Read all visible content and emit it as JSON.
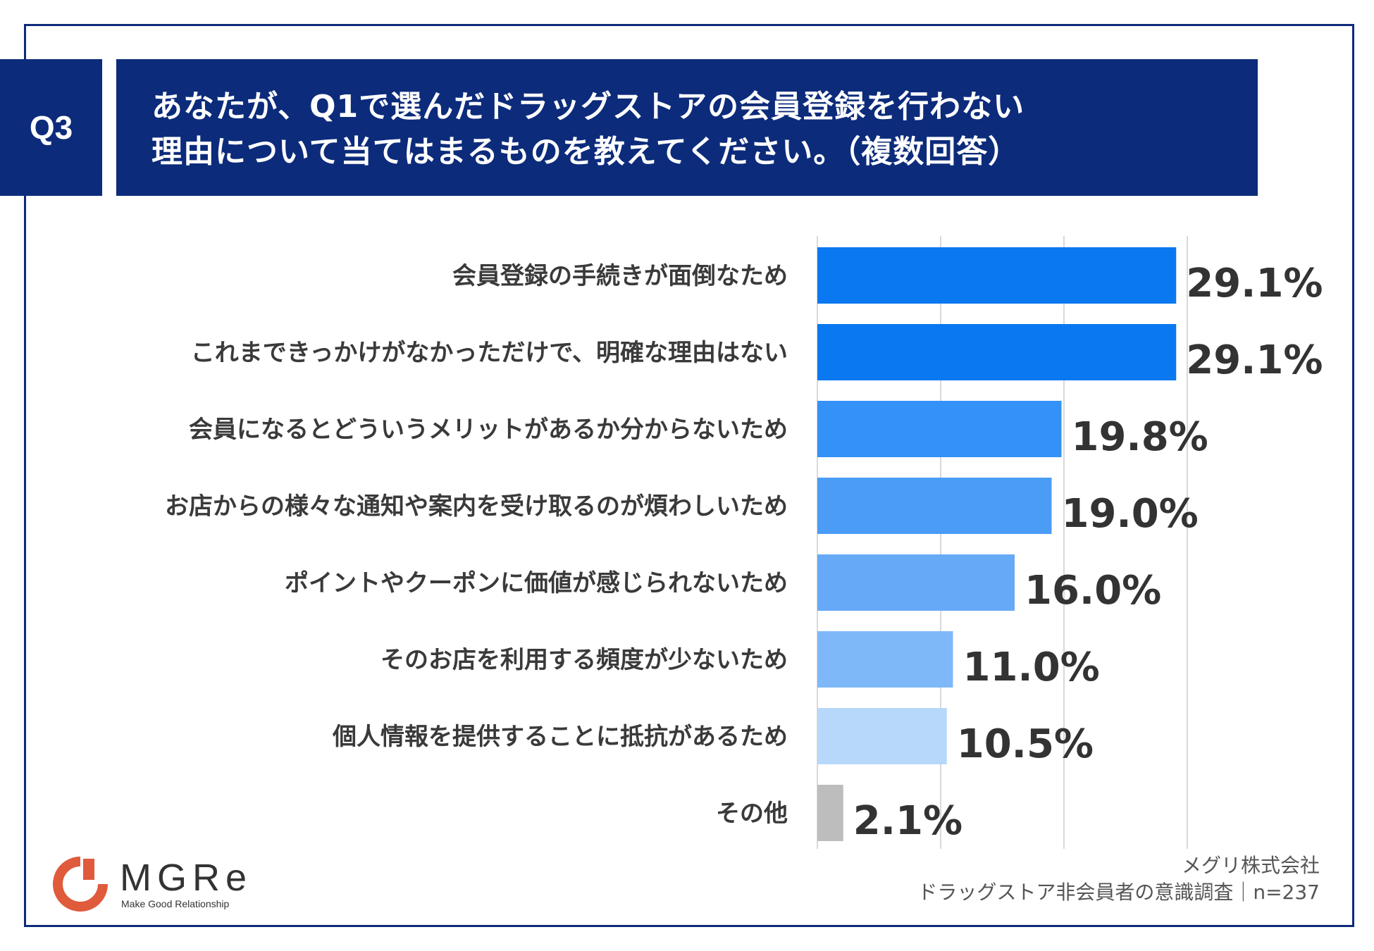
{
  "header": {
    "badge": "Q3",
    "title_line1": "あなたが、Q1で選んだドラッグストアの会員登録を行わない",
    "title_line2": "理由について当てはまるものを教えてください。（複数回答）",
    "badge_color": "#0c2b7a"
  },
  "chart_data": {
    "type": "bar",
    "orientation": "horizontal",
    "title": "あなたが、Q1で選んだドラッグストアの会員登録を行わない理由について当てはまるものを教えてください。（複数回答）",
    "categories": [
      "会員登録の手続きが面倒なため",
      "これまできっかけがなかっただけで、明確な理由はない",
      "会員になるとどういうメリットがあるか分からないため",
      "お店からの様々な通知や案内を受け取るのが煩わしいため",
      "ポイントやクーポンに価値が感じられないため",
      "そのお店を利用する頻度が少ないため",
      "個人情報を提供することに抵抗があるため",
      "その他"
    ],
    "values": [
      29.1,
      29.1,
      19.8,
      19.0,
      16.0,
      11.0,
      10.5,
      2.1
    ],
    "value_labels": [
      "29.1%",
      "29.1%",
      "19.8%",
      "19.0%",
      "16.0%",
      "11.0%",
      "10.5%",
      "2.1%"
    ],
    "colors": [
      "#0a78f0",
      "#0a78f0",
      "#3391f7",
      "#4b9cf5",
      "#66aaf7",
      "#7fb8f8",
      "#b7d8fb",
      "#bdbdbd"
    ],
    "xlim": [
      0,
      30
    ],
    "grid": true,
    "xlabel": "",
    "ylabel": ""
  },
  "footer": {
    "company": "メグリ株式会社",
    "survey": "ドラッグストア非会員者の意識調査｜n=237"
  },
  "logo": {
    "name": "MGRe",
    "tagline": "Make Good Relationship",
    "color": "#e05a3c"
  }
}
